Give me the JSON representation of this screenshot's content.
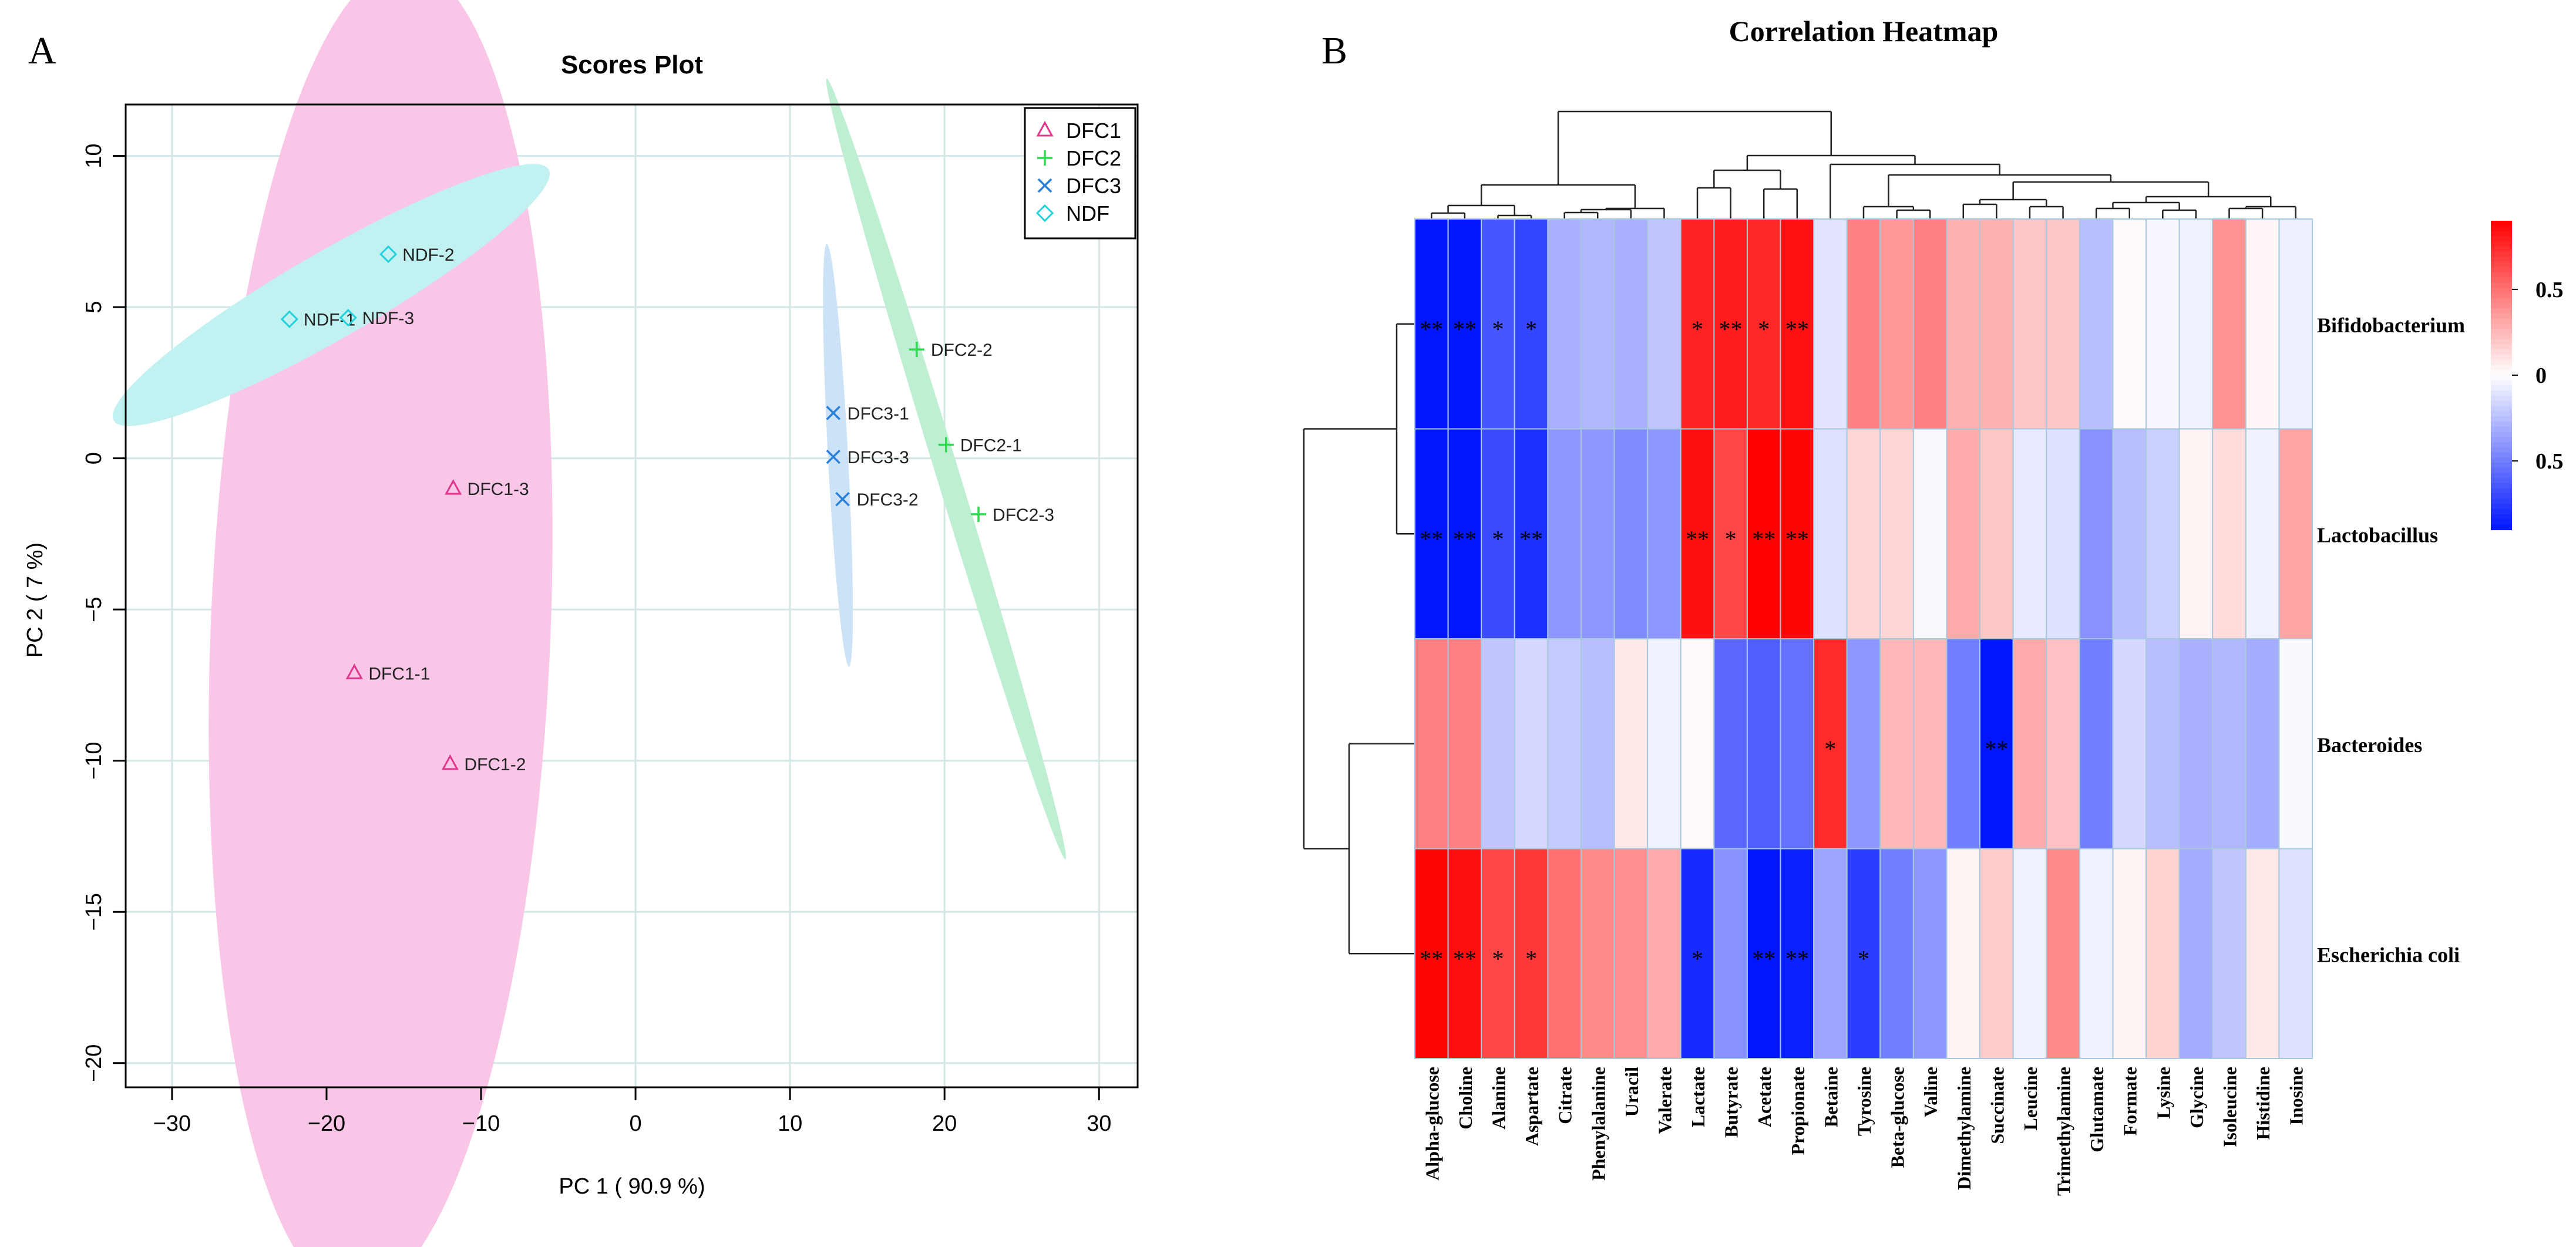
{
  "chart_data": [
    {
      "panel": "A",
      "type": "scatter",
      "title": "Scores Plot",
      "xlabel": "PC 1 ( 90.9 %)",
      "ylabel": "PC 2 ( 7 %)",
      "xlim": [
        -33,
        32.5
      ],
      "ylim": [
        -20.8,
        11.7
      ],
      "xticks": [
        -30,
        -20,
        -10,
        0,
        10,
        20,
        30
      ],
      "yticks": [
        -20,
        -15,
        -10,
        -5,
        0,
        5,
        10
      ],
      "grid": true,
      "legend": "top-right",
      "series": [
        {
          "name": "DFC1",
          "marker": "triangle",
          "color": "#e0368c",
          "ellipse_color": "#f9c6e8",
          "ellipse": {
            "cx": -16.5,
            "cy": -5.7,
            "rx": 11,
            "ry": 22,
            "angle": 2.3
          },
          "points": [
            {
              "label": "DFC1-3",
              "x": -11.8,
              "y": -1.0
            },
            {
              "label": "DFC1-1",
              "x": -18.2,
              "y": -7.1
            },
            {
              "label": "DFC1-2",
              "x": -12.0,
              "y": -10.1
            }
          ]
        },
        {
          "name": "DFC2",
          "marker": "plus",
          "color": "#2ed84f",
          "ellipse_color": "#bfefd2",
          "ellipse": {
            "cx": 20.1,
            "cy": -0.35,
            "rx": 0.75,
            "ry": 13.5,
            "angle": -17
          },
          "points": [
            {
              "label": "DFC2-2",
              "x": 18.2,
              "y": 3.6
            },
            {
              "label": "DFC2-1",
              "x": 20.1,
              "y": 0.45
            },
            {
              "label": "DFC2-3",
              "x": 22.2,
              "y": -1.85
            }
          ]
        },
        {
          "name": "DFC3",
          "marker": "x",
          "color": "#2a7fd9",
          "ellipse_color": "#cce2f6",
          "ellipse": {
            "cx": 13.1,
            "cy": 0.1,
            "rx": 0.65,
            "ry": 7.0,
            "angle": -3
          },
          "points": [
            {
              "label": "DFC3-1",
              "x": 12.8,
              "y": 1.5
            },
            {
              "label": "DFC3-3",
              "x": 12.8,
              "y": 0.05
            },
            {
              "label": "DFC3-2",
              "x": 13.4,
              "y": -1.35
            }
          ]
        },
        {
          "name": "NDF",
          "marker": "diamond",
          "color": "#22d1d9",
          "ellipse_color": "#c2f1f1",
          "ellipse": {
            "cx": -19.7,
            "cy": 5.4,
            "rx": 2.8,
            "ry": 8.3,
            "angle": 60
          },
          "points": [
            {
              "label": "NDF-2",
              "x": -16.0,
              "y": 6.75
            },
            {
              "label": "NDF-1",
              "x": -22.4,
              "y": 4.6
            },
            {
              "label": "NDF-3",
              "x": -18.6,
              "y": 4.65
            }
          ]
        }
      ]
    },
    {
      "panel": "B",
      "type": "heatmap",
      "title": "Correlation Heatmap",
      "rows": [
        "Bifidobacterium",
        "Lactobacillus",
        "Bacteroides",
        "Escherichia coli"
      ],
      "columns": [
        "Alpha-glucose",
        "Choline",
        "Alanine",
        "Aspartate",
        "Citrate",
        "Phenylalanine",
        "Uracil",
        "Valerate",
        "Lactate",
        "Butyrate",
        "Acetate",
        "Propionate",
        "Betaine",
        "Tyrosine",
        "Beta-glucose",
        "Valine",
        "Dimethylamine",
        "Succinate",
        "Leucine",
        "Trimethylamine",
        "Glutamate",
        "Formate",
        "Lysine",
        "Glycine",
        "Isoleucine",
        "Histidine",
        "Inosine"
      ],
      "values": [
        [
          -0.9,
          -0.92,
          -0.65,
          -0.72,
          -0.3,
          -0.28,
          -0.3,
          -0.22,
          0.78,
          0.8,
          0.76,
          0.84,
          -0.1,
          0.45,
          0.36,
          0.45,
          0.28,
          0.28,
          0.2,
          0.2,
          -0.25,
          0.02,
          -0.03,
          -0.05,
          0.38,
          0.03,
          -0.06
        ],
        [
          -0.9,
          -0.92,
          -0.7,
          -0.8,
          -0.4,
          -0.4,
          -0.45,
          -0.4,
          0.85,
          0.65,
          0.9,
          0.88,
          -0.12,
          0.15,
          0.15,
          -0.02,
          0.3,
          0.2,
          -0.08,
          -0.12,
          -0.42,
          -0.25,
          -0.18,
          0.04,
          0.12,
          -0.05,
          0.32
        ],
        [
          0.45,
          0.45,
          -0.22,
          -0.15,
          -0.2,
          -0.25,
          0.08,
          -0.05,
          0.02,
          -0.58,
          -0.62,
          -0.55,
          0.75,
          -0.4,
          0.25,
          0.25,
          -0.5,
          -0.9,
          0.3,
          0.22,
          -0.5,
          -0.15,
          -0.25,
          -0.3,
          -0.28,
          -0.32,
          -0.02
        ],
        [
          0.88,
          0.85,
          0.65,
          0.7,
          0.5,
          0.42,
          0.4,
          0.3,
          -0.82,
          -0.42,
          -0.9,
          -0.86,
          -0.35,
          -0.75,
          -0.5,
          -0.4,
          0.04,
          0.18,
          -0.05,
          0.42,
          -0.05,
          0.04,
          0.16,
          -0.32,
          -0.22,
          0.08,
          -0.12
        ]
      ],
      "significance": [
        [
          "**",
          "**",
          "*",
          "*",
          "",
          "",
          "",
          "",
          "*",
          "**",
          "*",
          "**",
          "",
          "",
          "",
          "",
          "",
          "",
          "",
          "",
          "",
          "",
          "",
          "",
          "",
          "",
          ""
        ],
        [
          "**",
          "**",
          "*",
          "**",
          "",
          "",
          "",
          "",
          "**",
          "*",
          "**",
          "**",
          "",
          "",
          "",
          "",
          "",
          "",
          "",
          "",
          "",
          "",
          "",
          "",
          "",
          "",
          ""
        ],
        [
          "",
          "",
          "",
          "",
          "",
          "",
          "",
          "",
          "",
          "",
          "",
          "",
          "*",
          "",
          "",
          "",
          "",
          "**",
          "",
          "",
          "",
          "",
          "",
          "",
          "",
          "",
          ""
        ],
        [
          "**",
          "**",
          "*",
          "*",
          "",
          "",
          "",
          "",
          "*",
          "",
          "**",
          "**",
          "",
          "*",
          "",
          "",
          "",
          "",
          "",
          "",
          "",
          "",
          "",
          "",
          "",
          "",
          ""
        ]
      ],
      "colorscale": {
        "min": -0.9,
        "max": 0.9,
        "low": "#0016ff",
        "mid": "#ffffff",
        "high": "#ff0000",
        "cell_border": "#a8c8dc"
      },
      "colorbar_ticks": [
        {
          "label": "0.5",
          "value": 0.5
        },
        {
          "label": "0",
          "value": 0
        },
        {
          "label": "0.5",
          "value": -0.5
        }
      ],
      "legend": "right"
    }
  ],
  "panels": {
    "a_label": "A",
    "b_label": "B"
  }
}
